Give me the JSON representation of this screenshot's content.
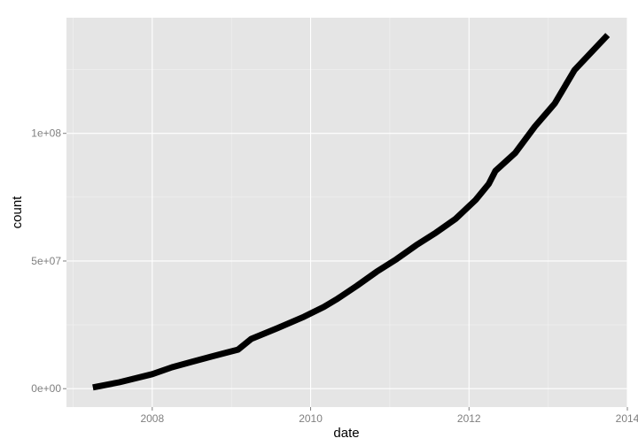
{
  "chart_data": {
    "type": "line",
    "title": "",
    "xlabel": "date",
    "ylabel": "count",
    "x_type": "date",
    "xlim": [
      "2006-12",
      "2014-01"
    ],
    "ylim": [
      -7200000,
      145300000
    ],
    "x_ticks": [
      "2008",
      "2010",
      "2012",
      "2014"
    ],
    "y_ticks": [
      {
        "value": 0,
        "label": "0e+00"
      },
      {
        "value": 50000000,
        "label": "5e+07"
      },
      {
        "value": 100000000,
        "label": "1e+08"
      }
    ],
    "grid": true,
    "legend": "none",
    "colors": {
      "panel": "#e5e5e5",
      "grid": "#ffffff",
      "line": "#000000"
    },
    "series": [
      {
        "x": [
          "2007-04",
          "2007-08",
          "2008-01",
          "2008-04",
          "2008-07",
          "2008-10",
          "2009-02",
          "2009-04",
          "2009-08",
          "2009-12",
          "2010-03",
          "2010-05",
          "2010-08",
          "2010-11",
          "2011-02",
          "2011-05",
          "2011-08",
          "2011-11",
          "2012-02",
          "2012-04",
          "2012-05",
          "2012-08",
          "2012-11",
          "2013-02",
          "2013-05",
          "2013-10"
        ],
        "y": [
          500000,
          2500000,
          5700000,
          8400000,
          10500000,
          12600000,
          15300000,
          19500000,
          23700000,
          28200000,
          32000000,
          35100000,
          40300000,
          45800000,
          50700000,
          56200000,
          61100000,
          66600000,
          73900000,
          80200000,
          85300000,
          92300000,
          102700000,
          111700000,
          124800000,
          138500000
        ]
      }
    ]
  }
}
